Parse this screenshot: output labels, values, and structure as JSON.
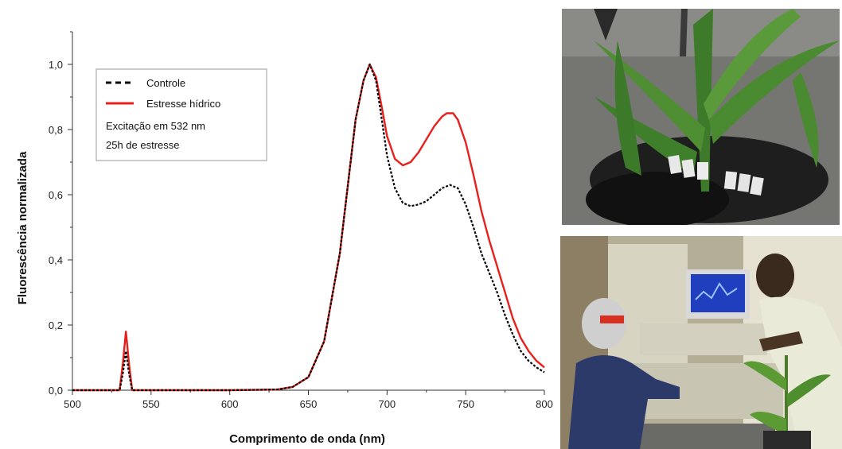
{
  "chart_data": {
    "type": "line",
    "xlabel": "Comprimento de onda (nm)",
    "ylabel": "Fluorescência normalizada",
    "xlim": [
      500,
      800
    ],
    "ylim": [
      0,
      1.1
    ],
    "x_ticks": [
      500,
      550,
      600,
      650,
      700,
      750,
      800
    ],
    "x_tick_labels": [
      "500",
      "550",
      "600",
      "650",
      "700",
      "750",
      "800"
    ],
    "y_ticks": [
      0,
      0.2,
      0.4,
      0.6,
      0.8,
      1.0
    ],
    "y_tick_labels": [
      "0,0",
      "0,2",
      "0,4",
      "0,6",
      "0,8",
      "1,0"
    ],
    "legend_position": "top-left",
    "annotations": [
      "Excitação em 532 nm",
      "25h de estresse"
    ],
    "series": [
      {
        "name": "Controle",
        "color": "#000000",
        "style": "dashed",
        "x": [
          500,
          530,
          532,
          534,
          536,
          538,
          545,
          600,
          630,
          640,
          650,
          660,
          670,
          680,
          685,
          689,
          693,
          697,
          700,
          705,
          710,
          715,
          720,
          725,
          730,
          735,
          740,
          745,
          750,
          755,
          760,
          765,
          770,
          775,
          780,
          785,
          790,
          795,
          800
        ],
        "y": [
          0,
          0,
          0.05,
          0.12,
          0.05,
          0,
          0,
          0,
          0.002,
          0.01,
          0.04,
          0.15,
          0.42,
          0.83,
          0.95,
          1.0,
          0.95,
          0.82,
          0.72,
          0.62,
          0.575,
          0.565,
          0.57,
          0.58,
          0.6,
          0.62,
          0.63,
          0.62,
          0.57,
          0.5,
          0.42,
          0.36,
          0.3,
          0.23,
          0.17,
          0.12,
          0.09,
          0.07,
          0.055
        ]
      },
      {
        "name": "Estresse hídrico",
        "color": "#e8201c",
        "style": "solid",
        "x": [
          500,
          530,
          532,
          534,
          536,
          538,
          545,
          600,
          630,
          640,
          650,
          660,
          670,
          680,
          685,
          689,
          693,
          697,
          700,
          705,
          710,
          715,
          720,
          725,
          730,
          735,
          738,
          742,
          745,
          750,
          755,
          760,
          765,
          770,
          775,
          780,
          785,
          790,
          795,
          800
        ],
        "y": [
          0,
          0,
          0.08,
          0.18,
          0.08,
          0,
          0,
          0,
          0.002,
          0.01,
          0.04,
          0.15,
          0.42,
          0.83,
          0.95,
          1.0,
          0.96,
          0.86,
          0.78,
          0.71,
          0.69,
          0.7,
          0.73,
          0.77,
          0.81,
          0.84,
          0.85,
          0.85,
          0.83,
          0.76,
          0.66,
          0.55,
          0.46,
          0.38,
          0.3,
          0.22,
          0.16,
          0.12,
          0.09,
          0.07
        ]
      }
    ]
  },
  "photos": {
    "top": {
      "icon": "maize-plants-photo"
    },
    "bottom": {
      "icon": "lab-measurement-photo"
    }
  }
}
